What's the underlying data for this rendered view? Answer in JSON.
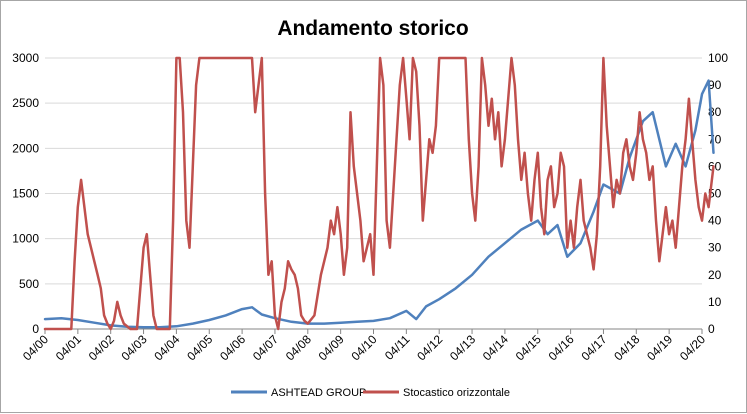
{
  "chart_data": {
    "type": "line",
    "title": "Andamento storico",
    "x_categories": [
      "04/00",
      "04/01",
      "04/02",
      "04/03",
      "04/04",
      "04/05",
      "04/06",
      "04/07",
      "04/08",
      "04/09",
      "04/10",
      "04/11",
      "04/12",
      "04/13",
      "04/14",
      "04/15",
      "04/16",
      "04/17",
      "04/18",
      "04/19",
      "04/20"
    ],
    "y_left": {
      "ylim": [
        0,
        3000
      ],
      "ticks": [
        "0",
        "500",
        "1000",
        "1500",
        "2000",
        "2500",
        "3000"
      ]
    },
    "y_right": {
      "ylim": [
        0,
        100
      ],
      "ticks": [
        "0",
        "10",
        "20",
        "30",
        "40",
        "50",
        "60",
        "70",
        "80",
        "90",
        "100"
      ]
    },
    "grid": true,
    "legend_position": "bottom",
    "series": [
      {
        "name": "ASHTEAD GROUP",
        "axis": "left",
        "color": "#4f81bd",
        "points": [
          [
            0,
            110
          ],
          [
            0.5,
            120
          ],
          [
            1,
            100
          ],
          [
            1.5,
            70
          ],
          [
            2,
            40
          ],
          [
            2.5,
            25
          ],
          [
            3,
            20
          ],
          [
            3.5,
            20
          ],
          [
            4,
            30
          ],
          [
            4.5,
            60
          ],
          [
            5,
            100
          ],
          [
            5.5,
            150
          ],
          [
            6,
            220
          ],
          [
            6.3,
            240
          ],
          [
            6.6,
            160
          ],
          [
            7,
            120
          ],
          [
            7.5,
            80
          ],
          [
            8,
            60
          ],
          [
            8.5,
            60
          ],
          [
            9,
            70
          ],
          [
            9.5,
            80
          ],
          [
            10,
            90
          ],
          [
            10.5,
            120
          ],
          [
            11,
            200
          ],
          [
            11.3,
            110
          ],
          [
            11.6,
            250
          ],
          [
            12,
            330
          ],
          [
            12.5,
            450
          ],
          [
            13,
            600
          ],
          [
            13.5,
            800
          ],
          [
            14,
            950
          ],
          [
            14.5,
            1100
          ],
          [
            15,
            1200
          ],
          [
            15.3,
            1050
          ],
          [
            15.6,
            1150
          ],
          [
            15.9,
            800
          ],
          [
            16.3,
            950
          ],
          [
            16.7,
            1300
          ],
          [
            17,
            1600
          ],
          [
            17.5,
            1500
          ],
          [
            17.8,
            1900
          ],
          [
            18.2,
            2300
          ],
          [
            18.5,
            2400
          ],
          [
            18.9,
            1800
          ],
          [
            19.2,
            2050
          ],
          [
            19.5,
            1800
          ],
          [
            19.8,
            2200
          ],
          [
            20,
            2600
          ],
          [
            20.2,
            2750
          ],
          [
            20.35,
            1950
          ]
        ]
      },
      {
        "name": "Stocastico orizzontale",
        "axis": "right",
        "color": "#c0504d",
        "points": [
          [
            0,
            0
          ],
          [
            0.8,
            0
          ],
          [
            0.9,
            25
          ],
          [
            1.0,
            45
          ],
          [
            1.1,
            55
          ],
          [
            1.2,
            45
          ],
          [
            1.3,
            35
          ],
          [
            1.4,
            30
          ],
          [
            1.5,
            25
          ],
          [
            1.6,
            20
          ],
          [
            1.7,
            15
          ],
          [
            1.8,
            5
          ],
          [
            1.9,
            2
          ],
          [
            2.0,
            0
          ],
          [
            2.1,
            3
          ],
          [
            2.2,
            10
          ],
          [
            2.3,
            5
          ],
          [
            2.4,
            2
          ],
          [
            2.6,
            0
          ],
          [
            2.8,
            0
          ],
          [
            3.0,
            30
          ],
          [
            3.1,
            35
          ],
          [
            3.2,
            20
          ],
          [
            3.3,
            5
          ],
          [
            3.4,
            0
          ],
          [
            3.8,
            0
          ],
          [
            3.9,
            40
          ],
          [
            4.0,
            100
          ],
          [
            4.1,
            100
          ],
          [
            4.2,
            80
          ],
          [
            4.3,
            40
          ],
          [
            4.4,
            30
          ],
          [
            4.5,
            60
          ],
          [
            4.6,
            90
          ],
          [
            4.7,
            100
          ],
          [
            5.0,
            100
          ],
          [
            5.5,
            100
          ],
          [
            6.0,
            100
          ],
          [
            6.3,
            100
          ],
          [
            6.4,
            80
          ],
          [
            6.5,
            90
          ],
          [
            6.6,
            100
          ],
          [
            6.7,
            50
          ],
          [
            6.8,
            20
          ],
          [
            6.9,
            25
          ],
          [
            7.0,
            5
          ],
          [
            7.1,
            0
          ],
          [
            7.2,
            10
          ],
          [
            7.3,
            15
          ],
          [
            7.4,
            25
          ],
          [
            7.5,
            22
          ],
          [
            7.6,
            20
          ],
          [
            7.7,
            15
          ],
          [
            7.8,
            5
          ],
          [
            7.9,
            3
          ],
          [
            8.0,
            2
          ],
          [
            8.2,
            5
          ],
          [
            8.4,
            20
          ],
          [
            8.5,
            25
          ],
          [
            8.6,
            30
          ],
          [
            8.7,
            40
          ],
          [
            8.8,
            35
          ],
          [
            8.9,
            45
          ],
          [
            9.0,
            35
          ],
          [
            9.1,
            20
          ],
          [
            9.2,
            30
          ],
          [
            9.3,
            80
          ],
          [
            9.4,
            60
          ],
          [
            9.5,
            50
          ],
          [
            9.6,
            40
          ],
          [
            9.7,
            25
          ],
          [
            9.8,
            30
          ],
          [
            9.9,
            35
          ],
          [
            10.0,
            20
          ],
          [
            10.1,
            60
          ],
          [
            10.2,
            100
          ],
          [
            10.3,
            90
          ],
          [
            10.4,
            40
          ],
          [
            10.5,
            30
          ],
          [
            10.6,
            50
          ],
          [
            10.7,
            70
          ],
          [
            10.8,
            90
          ],
          [
            10.9,
            100
          ],
          [
            11.0,
            85
          ],
          [
            11.1,
            70
          ],
          [
            11.2,
            100
          ],
          [
            11.3,
            95
          ],
          [
            11.4,
            75
          ],
          [
            11.5,
            40
          ],
          [
            11.6,
            55
          ],
          [
            11.7,
            70
          ],
          [
            11.8,
            65
          ],
          [
            11.9,
            75
          ],
          [
            12.0,
            100
          ],
          [
            12.3,
            100
          ],
          [
            12.6,
            100
          ],
          [
            12.8,
            100
          ],
          [
            12.9,
            70
          ],
          [
            13.0,
            50
          ],
          [
            13.1,
            40
          ],
          [
            13.2,
            60
          ],
          [
            13.3,
            100
          ],
          [
            13.4,
            90
          ],
          [
            13.5,
            75
          ],
          [
            13.6,
            85
          ],
          [
            13.7,
            70
          ],
          [
            13.8,
            80
          ],
          [
            13.9,
            60
          ],
          [
            14.0,
            70
          ],
          [
            14.1,
            85
          ],
          [
            14.2,
            100
          ],
          [
            14.3,
            90
          ],
          [
            14.4,
            70
          ],
          [
            14.5,
            55
          ],
          [
            14.6,
            65
          ],
          [
            14.7,
            50
          ],
          [
            14.8,
            40
          ],
          [
            14.9,
            55
          ],
          [
            15.0,
            65
          ],
          [
            15.1,
            45
          ],
          [
            15.2,
            35
          ],
          [
            15.3,
            55
          ],
          [
            15.4,
            60
          ],
          [
            15.5,
            45
          ],
          [
            15.6,
            50
          ],
          [
            15.7,
            65
          ],
          [
            15.8,
            60
          ],
          [
            15.9,
            30
          ],
          [
            16.0,
            40
          ],
          [
            16.1,
            30
          ],
          [
            16.2,
            45
          ],
          [
            16.3,
            55
          ],
          [
            16.4,
            40
          ],
          [
            16.5,
            35
          ],
          [
            16.6,
            30
          ],
          [
            16.7,
            22
          ],
          [
            16.8,
            35
          ],
          [
            16.9,
            60
          ],
          [
            17.0,
            100
          ],
          [
            17.1,
            75
          ],
          [
            17.2,
            60
          ],
          [
            17.3,
            45
          ],
          [
            17.4,
            55
          ],
          [
            17.5,
            50
          ],
          [
            17.6,
            65
          ],
          [
            17.7,
            70
          ],
          [
            17.8,
            60
          ],
          [
            17.9,
            55
          ],
          [
            18.0,
            65
          ],
          [
            18.1,
            80
          ],
          [
            18.2,
            70
          ],
          [
            18.3,
            65
          ],
          [
            18.4,
            55
          ],
          [
            18.5,
            60
          ],
          [
            18.6,
            40
          ],
          [
            18.7,
            25
          ],
          [
            18.8,
            35
          ],
          [
            18.9,
            45
          ],
          [
            19.0,
            35
          ],
          [
            19.1,
            40
          ],
          [
            19.2,
            30
          ],
          [
            19.3,
            45
          ],
          [
            19.4,
            60
          ],
          [
            19.5,
            70
          ],
          [
            19.6,
            85
          ],
          [
            19.7,
            70
          ],
          [
            19.8,
            55
          ],
          [
            19.9,
            45
          ],
          [
            20.0,
            40
          ],
          [
            20.1,
            50
          ],
          [
            20.2,
            45
          ],
          [
            20.35,
            60
          ]
        ]
      }
    ]
  }
}
